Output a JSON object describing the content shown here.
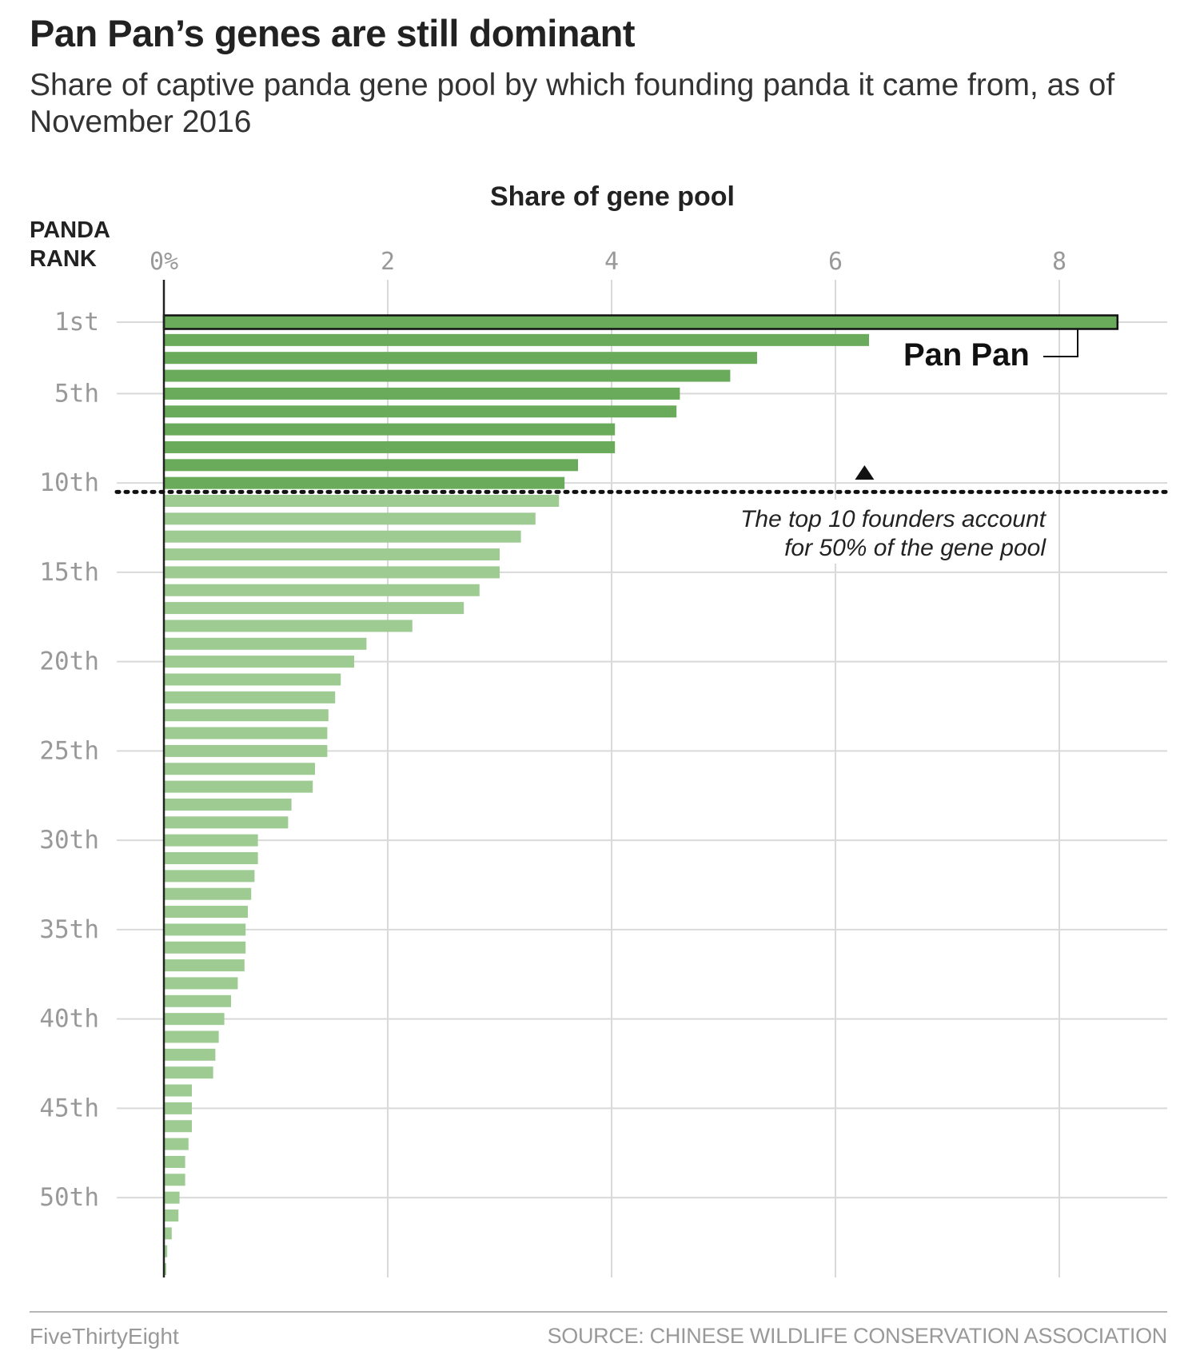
{
  "title": "Pan Pan’s genes are still dominant",
  "subtitle": "Share of captive panda gene pool by which founding panda it came from, as of November 2016",
  "credit": "FiveThirtyEight",
  "source": "SOURCE: CHINESE WILDLIFE CONSERVATION ASSOCIATION",
  "colors": {
    "top10": "#6aaa5b",
    "rest": "#9dcb92",
    "grid": "#d9d9d9",
    "text": "#222222",
    "tick": "#999999"
  },
  "chart_data": {
    "type": "bar",
    "orientation": "horizontal",
    "xlabel": "Share of gene pool",
    "ylabel_line1": "PANDA",
    "ylabel_line2": "RANK",
    "xlim": [
      0,
      8.8
    ],
    "x_ticks": [
      0,
      2,
      4,
      6,
      8
    ],
    "x_tick_labels": [
      "0%",
      "2",
      "4",
      "6",
      "8"
    ],
    "y_tick_ranks": [
      1,
      5,
      10,
      15,
      20,
      25,
      30,
      35,
      40,
      45,
      50
    ],
    "y_tick_labels": [
      "1st",
      "5th",
      "10th",
      "15th",
      "20th",
      "25th",
      "30th",
      "35th",
      "40th",
      "45th",
      "50th"
    ],
    "grid": true,
    "ranks": [
      1,
      2,
      3,
      4,
      5,
      6,
      7,
      8,
      9,
      10,
      11,
      12,
      13,
      14,
      15,
      16,
      17,
      18,
      19,
      20,
      21,
      22,
      23,
      24,
      25,
      26,
      27,
      28,
      29,
      30,
      31,
      32,
      33,
      34,
      35,
      36,
      37,
      38,
      39,
      40,
      41,
      42,
      43,
      44,
      45,
      46,
      47,
      48,
      49,
      50,
      51,
      52,
      53,
      54
    ],
    "values": [
      8.52,
      6.3,
      5.3,
      5.06,
      4.61,
      4.58,
      4.03,
      4.03,
      3.7,
      3.58,
      3.53,
      3.32,
      3.19,
      3.0,
      3.0,
      2.82,
      2.68,
      2.22,
      1.81,
      1.7,
      1.58,
      1.53,
      1.47,
      1.46,
      1.46,
      1.35,
      1.33,
      1.14,
      1.11,
      0.84,
      0.84,
      0.81,
      0.78,
      0.75,
      0.73,
      0.73,
      0.72,
      0.66,
      0.6,
      0.54,
      0.49,
      0.46,
      0.44,
      0.25,
      0.25,
      0.25,
      0.22,
      0.19,
      0.19,
      0.14,
      0.13,
      0.07,
      0.03,
      0.0
    ],
    "highlight_count": 10,
    "annotations": {
      "highlight_label": "Pan Pan",
      "threshold_note_line1": "The top 10 founders account",
      "threshold_note_line2": "for 50% of the gene pool"
    }
  }
}
